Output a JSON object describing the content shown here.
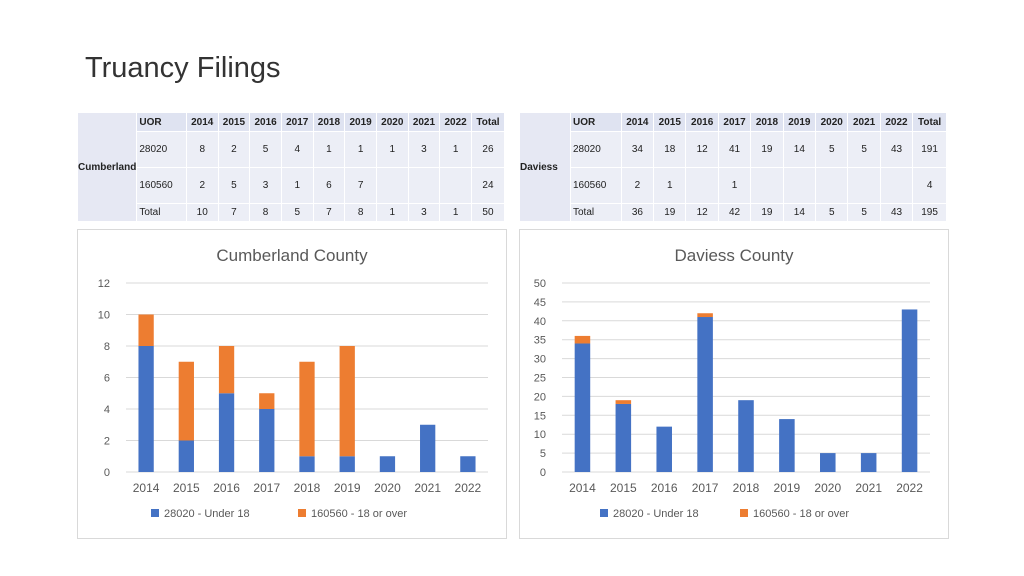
{
  "page": {
    "title": "Truancy Filings"
  },
  "tables": [
    {
      "county": "Cumberland",
      "header": [
        "UOR",
        "2014",
        "2015",
        "2016",
        "2017",
        "2018",
        "2019",
        "2020",
        "2021",
        "2022",
        "Total"
      ],
      "rows": [
        [
          "28020",
          "8",
          "2",
          "5",
          "4",
          "1",
          "1",
          "1",
          "3",
          "1",
          "26"
        ],
        [
          "160560",
          "2",
          "5",
          "3",
          "1",
          "6",
          "7",
          "",
          "",
          "",
          "24"
        ]
      ],
      "total": [
        "Total",
        "10",
        "7",
        "8",
        "5",
        "7",
        "8",
        "1",
        "3",
        "1",
        "50"
      ]
    },
    {
      "county": "Daviess",
      "header": [
        "UOR",
        "2014",
        "2015",
        "2016",
        "2017",
        "2018",
        "2019",
        "2020",
        "2021",
        "2022",
        "Total"
      ],
      "rows": [
        [
          "28020",
          "34",
          "18",
          "12",
          "41",
          "19",
          "14",
          "5",
          "5",
          "43",
          "191"
        ],
        [
          "160560",
          "2",
          "1",
          "",
          "1",
          "",
          "",
          "",
          "",
          "",
          "4"
        ]
      ],
      "total": [
        "Total",
        "36",
        "19",
        "12",
        "42",
        "19",
        "14",
        "5",
        "5",
        "43",
        "195"
      ]
    }
  ],
  "colors": {
    "series1": "#4472c4",
    "series2": "#ed7d31",
    "grid": "#d9d9d9",
    "text": "#595959"
  },
  "chart_data": [
    {
      "type": "bar",
      "stacked": true,
      "title": "Cumberland County",
      "categories": [
        "2014",
        "2015",
        "2016",
        "2017",
        "2018",
        "2019",
        "2020",
        "2021",
        "2022"
      ],
      "series": [
        {
          "name": "28020 - Under 18",
          "values": [
            8,
            2,
            5,
            4,
            1,
            1,
            1,
            3,
            1
          ]
        },
        {
          "name": "160560 - 18 or over",
          "values": [
            2,
            5,
            3,
            1,
            6,
            7,
            0,
            0,
            0
          ]
        }
      ],
      "ylim": [
        0,
        12
      ],
      "yticks": [
        0,
        2,
        4,
        6,
        8,
        10,
        12
      ],
      "grid": true,
      "legend": "bottom"
    },
    {
      "type": "bar",
      "stacked": true,
      "title": "Daviess County",
      "categories": [
        "2014",
        "2015",
        "2016",
        "2017",
        "2018",
        "2019",
        "2020",
        "2021",
        "2022"
      ],
      "series": [
        {
          "name": "28020 - Under 18",
          "values": [
            34,
            18,
            12,
            41,
            19,
            14,
            5,
            5,
            43
          ]
        },
        {
          "name": "160560 - 18 or over",
          "values": [
            2,
            1,
            0,
            1,
            0,
            0,
            0,
            0,
            0
          ]
        }
      ],
      "ylim": [
        0,
        50
      ],
      "yticks": [
        0,
        5,
        10,
        15,
        20,
        25,
        30,
        35,
        40,
        45,
        50
      ],
      "grid": true,
      "legend": "bottom"
    }
  ]
}
